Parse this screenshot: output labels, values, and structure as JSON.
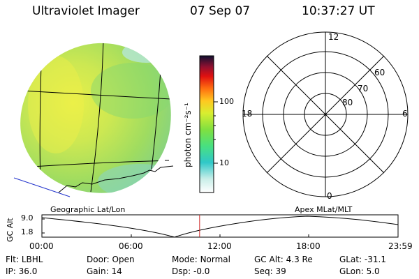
{
  "header": {
    "title": "Ultraviolet Imager",
    "date": "07 Sep 07",
    "time": "10:37:27 UT"
  },
  "colorbar": {
    "label": "photon cm⁻²s⁻¹",
    "ticks": [
      "100",
      "10"
    ]
  },
  "polar": {
    "mlt_labels": {
      "top": "12",
      "left": "18",
      "right": "6",
      "bottom": "0"
    },
    "lat_labels": [
      "60",
      "70",
      "80"
    ]
  },
  "projection": {
    "left_label": "Geographic Lat/Lon",
    "right_label": "Apex MLat/MLT"
  },
  "orbit": {
    "axis_label": "GC Alt",
    "y_ticks": [
      "9.0",
      "1.8"
    ],
    "x_ticks": [
      "00:00",
      "06:00",
      "12:00",
      "18:00",
      "23:59"
    ],
    "current_time_fraction": 0.4428
  },
  "footer": {
    "row1": [
      {
        "label": "Flt:",
        "value": "LBHL"
      },
      {
        "label": "Door:",
        "value": "Open"
      },
      {
        "label": "Mode:",
        "value": "Normal"
      },
      {
        "label": "GC Alt:",
        "value": "4.3 Re"
      },
      {
        "label": "GLat:",
        "value": "-31.1"
      }
    ],
    "row2": [
      {
        "label": "IP:",
        "value": "36.0"
      },
      {
        "label": "Gain:",
        "value": "14"
      },
      {
        "label": "Dsp:",
        "value": "-0.0"
      },
      {
        "label": "Seq:",
        "value": "39"
      },
      {
        "label": "GLon:",
        "value": "5.0"
      }
    ]
  },
  "colors": {
    "disk_base": "#a8e05a",
    "disk_bright": "#e4f04a",
    "disk_edge": "#8fd6b8",
    "time_marker": "#cc2222",
    "coast_line": "#2233cc"
  }
}
